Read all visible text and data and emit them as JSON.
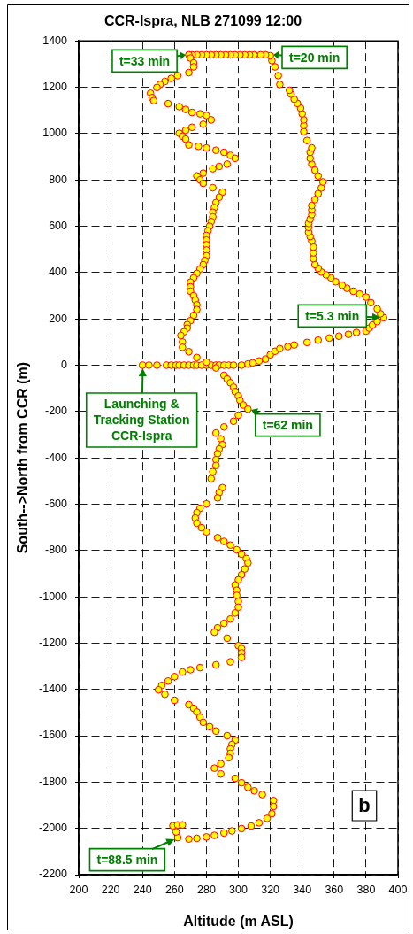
{
  "chart_data": {
    "type": "scatter",
    "title": "CCR-Ispra, NLB 271099 12:00",
    "xlabel": "Altitude (m ASL)",
    "ylabel": "South-->North from CCR (m)",
    "x": [
      240,
      244,
      249,
      255,
      258,
      261,
      263,
      266,
      269,
      272,
      274,
      277,
      280,
      283,
      286,
      288,
      291,
      294,
      297,
      302,
      306,
      309,
      313,
      317,
      320,
      323,
      326,
      331,
      335,
      343,
      350,
      357,
      363,
      369,
      374,
      380,
      382,
      384,
      387,
      391,
      389,
      387,
      383,
      380,
      376,
      372,
      368,
      365,
      361,
      358,
      355,
      352,
      350,
      348,
      347,
      347,
      347,
      346,
      345,
      344,
      344,
      344,
      345,
      346,
      346,
      346,
      348,
      350,
      352,
      353,
      350,
      348,
      346,
      345,
      345,
      346,
      343,
      341,
      341,
      341,
      340,
      339,
      337,
      335,
      333,
      332,
      326,
      325,
      323,
      321,
      320,
      317,
      314,
      310,
      307,
      304,
      301,
      298,
      295,
      292,
      289,
      286,
      283,
      280,
      277,
      274,
      271,
      269,
      270,
      272,
      272,
      269,
      262,
      258,
      254,
      251,
      249,
      245,
      246,
      247,
      256,
      263,
      267,
      271,
      276,
      280,
      283,
      278,
      271,
      267,
      263,
      265,
      267,
      269,
      275,
      280,
      286,
      291,
      295,
      298,
      293,
      288,
      284,
      278,
      274,
      276,
      278,
      284,
      290,
      288,
      286,
      285,
      284,
      284,
      283,
      282,
      281,
      280,
      280,
      280,
      280,
      280,
      279,
      278,
      276,
      274,
      272,
      270,
      270,
      270,
      272,
      273,
      274,
      274,
      272,
      270,
      268,
      268,
      266,
      264,
      265,
      265,
      269,
      274,
      280,
      286,
      291,
      293,
      295,
      297,
      298,
      300,
      301,
      303,
      306,
      300,
      297,
      291,
      286,
      289,
      290,
      288,
      287,
      286,
      286,
      284,
      283,
      290,
      288,
      287,
      280,
      276,
      274,
      273,
      274,
      277,
      280,
      287,
      291,
      295,
      299,
      302,
      305,
      306,
      304,
      302,
      300,
      298,
      299,
      299,
      300,
      300,
      298,
      295,
      291,
      287,
      285,
      293,
      300,
      302,
      302,
      302,
      295,
      286,
      276,
      270,
      265,
      260,
      256,
      252,
      250,
      254,
      260,
      269,
      272,
      274,
      276,
      278,
      282,
      286,
      293,
      298,
      296,
      295,
      295,
      294,
      289,
      285,
      289,
      298,
      302,
      306,
      310,
      315,
      322,
      322,
      321,
      318,
      313,
      308,
      302,
      296,
      291,
      285,
      280,
      274,
      269,
      262,
      261,
      259,
      262,
      265
    ],
    "values": [
      0,
      0,
      0,
      0,
      0,
      0,
      0,
      0,
      0,
      0,
      0,
      0,
      0,
      0,
      0,
      0,
      0,
      0,
      0,
      0,
      5,
      10,
      18,
      26,
      45,
      60,
      71,
      80,
      87,
      98,
      108,
      117,
      125,
      133,
      141,
      147,
      160,
      173,
      188,
      205,
      222,
      243,
      270,
      294,
      307,
      319,
      332,
      345,
      360,
      377,
      390,
      402,
      418,
      434,
      460,
      485,
      510,
      536,
      555,
      574,
      595,
      612,
      630,
      650,
      670,
      689,
      715,
      740,
      765,
      791,
      817,
      842,
      868,
      893,
      919,
      938,
      970,
      1008,
      1035,
      1059,
      1085,
      1110,
      1130,
      1148,
      1170,
      1187,
      1212,
      1250,
      1288,
      1315,
      1336,
      1340,
      1340,
      1340,
      1340,
      1340,
      1340,
      1340,
      1340,
      1340,
      1340,
      1340,
      1340,
      1340,
      1340,
      1340,
      1340,
      1340,
      1326,
      1305,
      1288,
      1263,
      1250,
      1238,
      1225,
      1212,
      1199,
      1174,
      1155,
      1142,
      1129,
      1116,
      1104,
      1091,
      1085,
      1078,
      1059,
      1040,
      1027,
      1014,
      1001,
      988,
      976,
      951,
      945,
      938,
      928,
      919,
      906,
      893,
      868,
      858,
      848,
      829,
      817,
      800,
      785,
      766,
      747,
      725,
      702,
      680,
      660,
      640,
      620,
      600,
      580,
      560,
      540,
      520,
      497,
      472,
      452,
      434,
      415,
      396,
      377,
      358,
      338,
      319,
      300,
      281,
      260,
      240,
      215,
      192,
      175,
      160,
      144,
      128,
      100,
      77,
      58,
      33,
      13,
      -12,
      -44,
      -60,
      -76,
      -95,
      -114,
      -133,
      -152,
      -172,
      -190,
      -216,
      -242,
      -267,
      -293,
      -318,
      -343,
      -362,
      -382,
      -408,
      -433,
      -460,
      -490,
      -529,
      -550,
      -573,
      -599,
      -618,
      -637,
      -660,
      -682,
      -702,
      -720,
      -745,
      -761,
      -777,
      -797,
      -816,
      -835,
      -854,
      -880,
      -905,
      -927,
      -949,
      -972,
      -994,
      -1020,
      -1045,
      -1070,
      -1096,
      -1115,
      -1134,
      -1153,
      -1179,
      -1211,
      -1223,
      -1242,
      -1262,
      -1281,
      -1294,
      -1306,
      -1315,
      -1325,
      -1345,
      -1364,
      -1383,
      -1402,
      -1421,
      -1447,
      -1466,
      -1482,
      -1498,
      -1520,
      -1542,
      -1561,
      -1580,
      -1600,
      -1619,
      -1638,
      -1657,
      -1676,
      -1695,
      -1721,
      -1740,
      -1765,
      -1784,
      -1803,
      -1823,
      -1838,
      -1854,
      -1880,
      -1906,
      -1937,
      -1957,
      -1976,
      -1990,
      -2001,
      -2011,
      -2020,
      -2030,
      -2037,
      -2043,
      -2046,
      -2040,
      -2015,
      -1989,
      -1985,
      -1985
    ],
    "color": "#ffff00",
    "marker": "circle",
    "grid": true,
    "xlim": [
      200,
      400
    ],
    "xticks": [
      200,
      220,
      240,
      260,
      280,
      300,
      320,
      340,
      360,
      380,
      400
    ],
    "ylim": [
      -2200,
      1400
    ],
    "yticks": [
      -2200,
      -2000,
      -1800,
      -1600,
      -1400,
      -1200,
      -1000,
      -800,
      -600,
      -400,
      -200,
      0,
      200,
      400,
      600,
      800,
      1000,
      1200,
      1400
    ],
    "annotations": [
      {
        "text": "t=33 min",
        "x": 269,
        "y": 1340
      },
      {
        "text": "t=20 min",
        "x": 320,
        "y": 1340
      },
      {
        "text": "t=5.3 min",
        "x": 391,
        "y": 205
      },
      {
        "text": "Launching & Tracking Station CCR-Ispra",
        "x": 240,
        "y": 0
      },
      {
        "text": "t=62 min",
        "x": 306,
        "y": -190
      },
      {
        "text": "t=88.5 min",
        "x": 262,
        "y": -2040
      },
      "b"
    ]
  }
}
